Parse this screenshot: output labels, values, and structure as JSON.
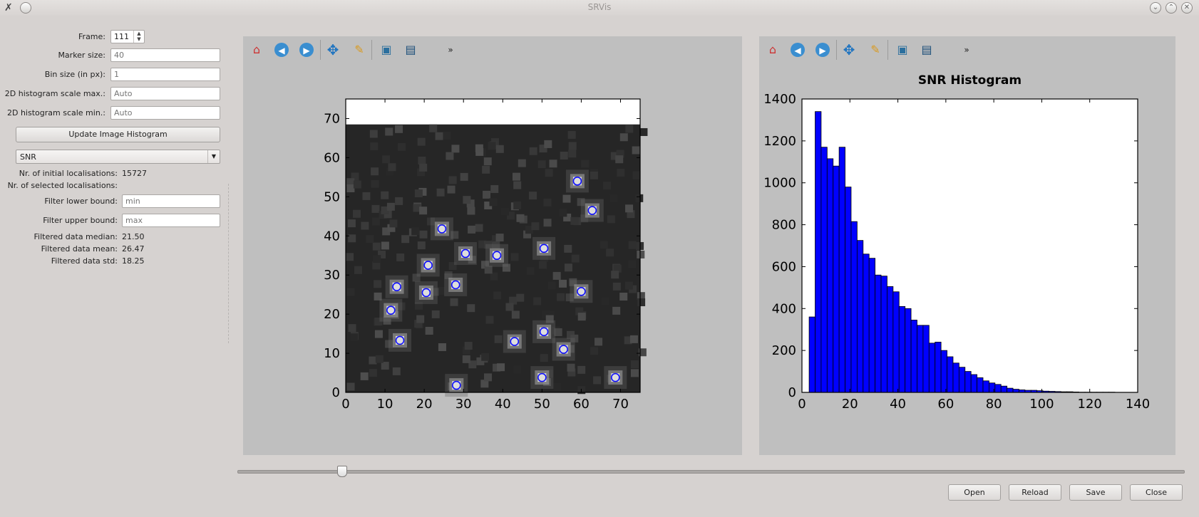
{
  "window": {
    "title": "SRVis"
  },
  "controls": {
    "frame": {
      "label": "Frame:",
      "value": "111"
    },
    "marker_size": {
      "label": "Marker size:",
      "placeholder": "40"
    },
    "bin_size": {
      "label": "Bin size (in px):",
      "placeholder": "1"
    },
    "scale_max": {
      "label": "2D histogram scale max.:",
      "placeholder": "Auto"
    },
    "scale_min": {
      "label": "2D histogram scale min.:",
      "placeholder": "Auto"
    },
    "update_button": "Update Image Histogram",
    "metric_select": "SNR",
    "initial_label": "Nr. of initial localisations:",
    "initial_value": "15727",
    "selected_label": "Nr. of selected localisations:",
    "lower_bound": {
      "label": "Filter lower bound:",
      "placeholder": "min"
    },
    "upper_bound": {
      "label": "Filter upper bound:",
      "placeholder": "max"
    },
    "median_label": "Filtered data median:",
    "median_value": "21.50",
    "mean_label": "Filtered data mean:",
    "mean_value": "26.47",
    "std_label": "Filtered data std:",
    "std_value": "18.25"
  },
  "toolbar_icons": [
    "home-icon",
    "back-icon",
    "forward-icon",
    "pan-icon",
    "edit-icon",
    "subplots-icon",
    "save-icon",
    "more-icon"
  ],
  "frame_slider": {
    "fraction": 0.11
  },
  "buttons": {
    "open": "Open",
    "reload": "Reload",
    "save": "Save",
    "close": "Close"
  },
  "image_chart": {
    "type": "scatter",
    "x_ticks": [
      "0",
      "10",
      "20",
      "30",
      "40",
      "50",
      "60",
      "70"
    ],
    "y_ticks": [
      "0",
      "10",
      "20",
      "30",
      "40",
      "50",
      "60",
      "70"
    ],
    "xlim": [
      0,
      75
    ],
    "ylim": [
      0,
      75
    ],
    "image_height": 68.5,
    "marker_color": "#1010ff",
    "points": [
      {
        "x": 11.5,
        "y": 21
      },
      {
        "x": 13,
        "y": 27
      },
      {
        "x": 13.8,
        "y": 13.3
      },
      {
        "x": 20.5,
        "y": 25.5
      },
      {
        "x": 21,
        "y": 32.5
      },
      {
        "x": 24.5,
        "y": 41.8
      },
      {
        "x": 28,
        "y": 27.5
      },
      {
        "x": 30.5,
        "y": 35.5
      },
      {
        "x": 38.5,
        "y": 35
      },
      {
        "x": 50.5,
        "y": 36.8
      },
      {
        "x": 60,
        "y": 25.8
      },
      {
        "x": 59,
        "y": 54
      },
      {
        "x": 62.8,
        "y": 46.5
      },
      {
        "x": 43,
        "y": 13
      },
      {
        "x": 50.5,
        "y": 15.5
      },
      {
        "x": 55.5,
        "y": 11
      },
      {
        "x": 50,
        "y": 3.8
      },
      {
        "x": 28.2,
        "y": 1.8
      },
      {
        "x": 68.7,
        "y": 3.8
      }
    ]
  },
  "chart_data": {
    "type": "bar",
    "title": "SNR Histogram",
    "bar_color": "#0000ff",
    "xlim": [
      0,
      140
    ],
    "ylim": [
      0,
      1400
    ],
    "x_ticks": [
      "0",
      "20",
      "40",
      "60",
      "80",
      "100",
      "120",
      "140"
    ],
    "y_ticks": [
      "0",
      "200",
      "400",
      "600",
      "800",
      "1000",
      "1200",
      "1400"
    ],
    "bin_start": 3,
    "bin_width": 2.5,
    "values": [
      360,
      1340,
      1170,
      1115,
      1080,
      1170,
      980,
      815,
      725,
      660,
      640,
      560,
      555,
      505,
      480,
      410,
      400,
      345,
      320,
      320,
      235,
      240,
      200,
      170,
      140,
      120,
      100,
      85,
      70,
      55,
      45,
      38,
      30,
      20,
      15,
      12,
      10,
      10,
      8,
      6,
      5,
      4,
      3,
      3,
      2,
      1,
      1,
      1,
      1,
      1,
      1
    ]
  }
}
